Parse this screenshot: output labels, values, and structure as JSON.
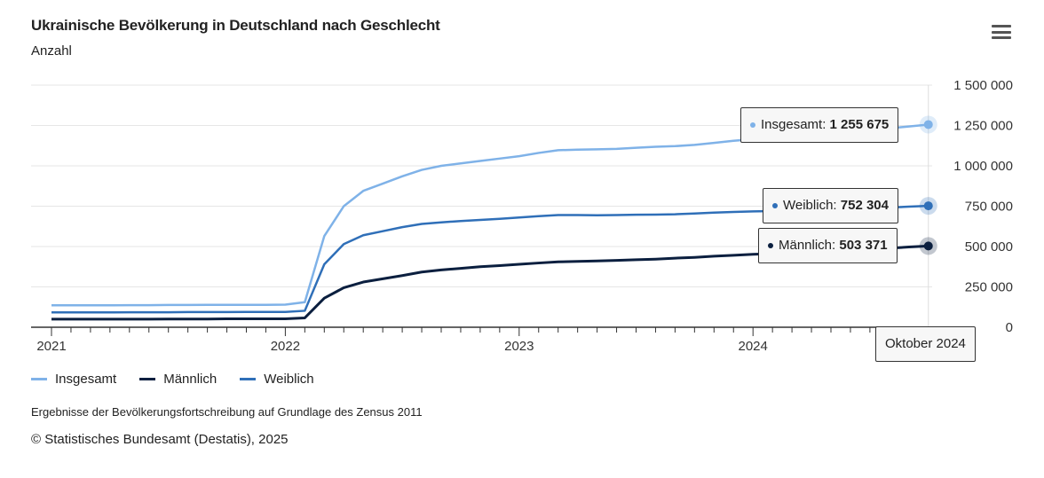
{
  "header": {
    "title": "Ukrainische Bevölkerung in Deutschland nach Geschlecht",
    "subtitle": "Anzahl",
    "menu_icon": "hamburger-menu-icon"
  },
  "chart_data": {
    "type": "line",
    "title": "Ukrainische Bevölkerung in Deutschland nach Geschlecht",
    "ylabel": "Anzahl",
    "x_start": "2021-01",
    "x_end": "2024-10",
    "x_interval": "monthly",
    "x_ticks": [
      "2021",
      "2022",
      "2023",
      "2024"
    ],
    "y_ticks": [
      "0",
      "250 000",
      "500 000",
      "750 000",
      "1 000 000",
      "1 250 000",
      "1 500 000"
    ],
    "ylim": [
      0,
      1500000
    ],
    "grid": true,
    "legend": "bottom-left",
    "series": [
      {
        "name": "Insgesamt",
        "color": "#7fb2e8",
        "values": [
          136000,
          136000,
          136000,
          136000,
          137000,
          137000,
          138000,
          138000,
          139000,
          139000,
          139000,
          139000,
          140000,
          155000,
          565000,
          750000,
          845000,
          890000,
          935000,
          975000,
          1000000,
          1015000,
          1030000,
          1045000,
          1060000,
          1080000,
          1097000,
          1100000,
          1102000,
          1105000,
          1112000,
          1118000,
          1122000,
          1130000,
          1142000,
          1155000,
          1165000,
          1172000,
          1180000,
          1190000,
          1200000,
          1210000,
          1222000,
          1232000,
          1244000,
          1255675
        ]
      },
      {
        "name": "Männlich",
        "color": "#0b1f3f",
        "values": [
          50000,
          50000,
          50000,
          50000,
          50000,
          50000,
          51000,
          51000,
          51000,
          52000,
          52000,
          52000,
          52000,
          58000,
          180000,
          245000,
          280000,
          300000,
          320000,
          342000,
          355000,
          365000,
          375000,
          382000,
          390000,
          398000,
          405000,
          408000,
          411000,
          414000,
          418000,
          422000,
          428000,
          433000,
          440000,
          446000,
          452000,
          456000,
          460000,
          466000,
          472000,
          478000,
          484000,
          490000,
          497000,
          503371
        ]
      },
      {
        "name": "Weiblich",
        "color": "#2f6fb8",
        "values": [
          92000,
          92000,
          92000,
          92000,
          93000,
          93000,
          93000,
          94000,
          94000,
          94000,
          95000,
          95000,
          95000,
          102000,
          390000,
          515000,
          570000,
          595000,
          620000,
          640000,
          650000,
          658000,
          665000,
          672000,
          680000,
          688000,
          695000,
          695000,
          694000,
          695000,
          697000,
          698000,
          700000,
          705000,
          710000,
          714000,
          718000,
          720000,
          722000,
          725000,
          728000,
          733000,
          738000,
          742000,
          747000,
          752304
        ]
      }
    ],
    "tooltip": {
      "date": "Oktober 2024",
      "items": [
        {
          "label": "Insgesamt:",
          "value": "1 255 675"
        },
        {
          "label": "Weiblich:",
          "value": "752 304"
        },
        {
          "label": "Männlich:",
          "value": "503 371"
        }
      ]
    }
  },
  "legend": [
    "Insgesamt",
    "Männlich",
    "Weiblich"
  ],
  "footer": {
    "note": "Ergebnisse der Bevölkerungsfortschreibung auf Grundlage des Zensus 2011",
    "source": "© Statistisches Bundesamt (Destatis), 2025"
  }
}
